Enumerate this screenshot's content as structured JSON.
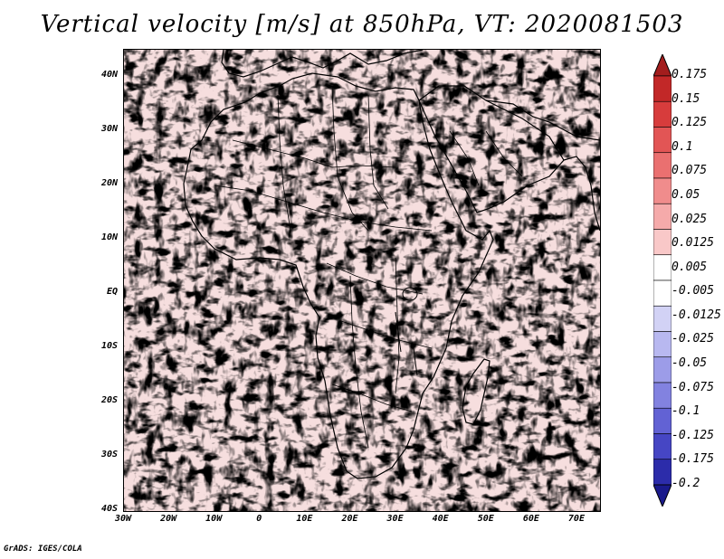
{
  "title": "Vertical velocity [m/s] at 850hPa, VT: 2020081503",
  "credit": "GrADS: IGES/COLA",
  "map": {
    "lat_min": -40,
    "lat_max": 45,
    "lon_min": -30,
    "lon_max": 75,
    "lat_labels": [
      "40N",
      "30N",
      "20N",
      "10N",
      "EQ",
      "10S",
      "20S",
      "30S",
      "40S"
    ],
    "lon_labels": [
      "30W",
      "20W",
      "10W",
      "0",
      "10E",
      "20E",
      "30E",
      "40E",
      "50E",
      "60E",
      "70E"
    ]
  },
  "colorbar": {
    "labels": [
      "0.175",
      "0.15",
      "0.125",
      "0.1",
      "0.075",
      "0.05",
      "0.025",
      "0.0125",
      "0.005",
      "-0.005",
      "-0.0125",
      "-0.025",
      "-0.05",
      "-0.075",
      "-0.1",
      "-0.125",
      "-0.175",
      "-0.2"
    ],
    "colors": [
      "#a31d1d",
      "#c22828",
      "#d73c3c",
      "#e25555",
      "#ea7070",
      "#f08c8c",
      "#f5aaaa",
      "#f9c8c8",
      "#ffffff",
      "#ffffff",
      "#d2d2f5",
      "#b8b8f0",
      "#9c9ce8",
      "#8282e0",
      "#6262d4",
      "#4646c4",
      "#2c2caa",
      "#1a1a8c"
    ]
  },
  "field": {
    "background_pos": "#f6dede",
    "background_neg": "#d9dcf6",
    "red_shade": "#e88a8a",
    "blue_shade": "#8c92e6",
    "land_outline": "#000000"
  }
}
